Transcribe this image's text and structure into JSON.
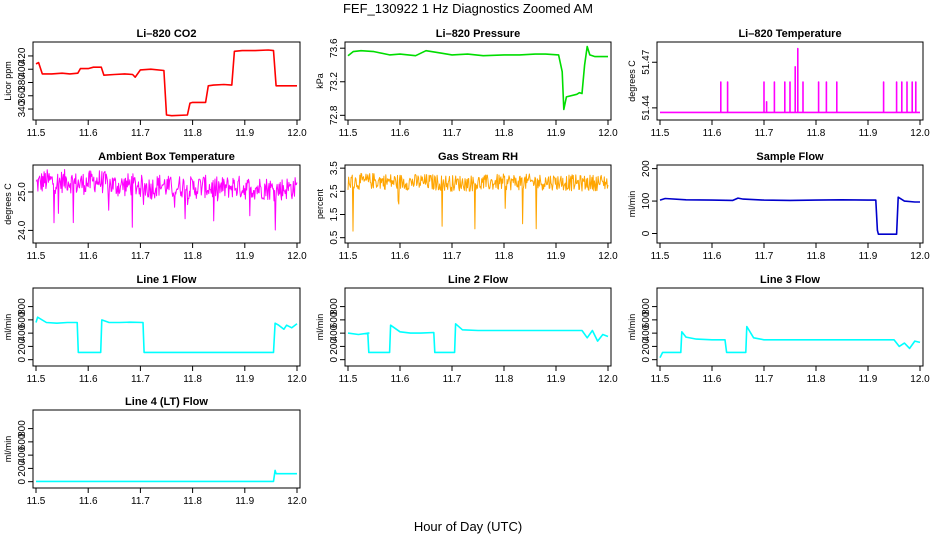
{
  "title": "FEF_130922  1 Hz Diagnostics Zoomed AM",
  "xlabel": "Hour of Day (UTC)",
  "chart_data": [
    {
      "type": "line",
      "title": "Li–820 CO2",
      "ylabel": "Licor ppm",
      "color": "#ff0000",
      "xlim": [
        11.5,
        12.0
      ],
      "ylim": [
        328,
        438
      ],
      "x_ticks": [
        "11.5",
        "11.6",
        "11.7",
        "11.8",
        "11.9",
        "12.0"
      ],
      "y_ticks": [
        {
          "value": 340,
          "label": "340"
        },
        {
          "value": 360,
          "label": "360"
        },
        {
          "value": 380,
          "label": "380"
        },
        {
          "value": 400,
          "label": "400"
        },
        {
          "value": 420,
          "label": "420"
        }
      ],
      "series": [
        {
          "x": [
            11.5,
            11.505,
            11.512,
            11.53,
            11.55,
            11.565,
            11.58,
            11.585,
            11.6,
            11.61,
            11.625,
            11.63,
            11.65,
            11.67,
            11.685,
            11.69,
            11.7,
            11.72,
            11.745,
            11.75,
            11.76,
            11.79,
            11.795,
            11.8,
            11.815,
            11.825,
            11.83,
            11.84,
            11.86,
            11.875,
            11.88,
            11.895,
            11.92,
            11.945,
            11.955,
            11.96,
            11.97,
            11.99,
            12.0
          ],
          "y": [
            408,
            410,
            393,
            393,
            394,
            393,
            394,
            401,
            401,
            403,
            403,
            391,
            392,
            393,
            392,
            388,
            399,
            400,
            398,
            331,
            330,
            331,
            349,
            350,
            350,
            350,
            375,
            376,
            377,
            376,
            427,
            428,
            428,
            429,
            428,
            375,
            375,
            375,
            375
          ]
        }
      ]
    },
    {
      "type": "line",
      "title": "Li–820 Pressure",
      "ylabel": "kPa",
      "color": "#00dd00",
      "xlim": [
        11.5,
        12.0
      ],
      "ylim": [
        72.78,
        73.65
      ],
      "x_ticks": [
        "11.5",
        "11.6",
        "11.7",
        "11.8",
        "11.9",
        "12.0"
      ],
      "y_ticks": [
        {
          "value": 72.8,
          "label": "72.8"
        },
        {
          "value": 73.2,
          "label": "73.2"
        },
        {
          "value": 73.6,
          "label": "73.6"
        }
      ],
      "series": [
        {
          "x": [
            11.5,
            11.51,
            11.525,
            11.55,
            11.58,
            11.6,
            11.63,
            11.65,
            11.68,
            11.7,
            11.73,
            11.76,
            11.8,
            11.83,
            11.86,
            11.88,
            11.905,
            11.912,
            11.915,
            11.92,
            11.94,
            11.945,
            11.95,
            11.955,
            11.96,
            11.965,
            11.975,
            11.99,
            12.0
          ],
          "y": [
            73.51,
            73.56,
            73.57,
            73.56,
            73.52,
            73.53,
            73.51,
            73.57,
            73.54,
            73.52,
            73.53,
            73.51,
            73.52,
            73.52,
            73.53,
            73.53,
            73.52,
            73.32,
            72.87,
            73.02,
            73.05,
            73.07,
            73.06,
            73.4,
            73.62,
            73.52,
            73.5,
            73.5,
            73.5
          ]
        }
      ]
    },
    {
      "type": "line",
      "title": "Li–820 Temperature",
      "ylabel": "degrees C",
      "color": "#ff00ff",
      "xlim": [
        11.5,
        12.0
      ],
      "ylim": [
        51.434,
        51.482
      ],
      "x_ticks": [
        "11.5",
        "11.6",
        "11.7",
        "11.8",
        "11.9",
        "12.0"
      ],
      "y_ticks": [
        {
          "value": 51.44,
          "label": "51.44"
        },
        {
          "value": 51.47,
          "label": "51.47"
        }
      ],
      "series": [
        {
          "x": [
            11.5,
            11.617,
            11.617,
            11.617,
            11.63,
            11.63,
            11.63,
            11.7,
            11.7,
            11.7,
            11.705,
            11.705,
            11.705,
            11.72,
            11.72,
            11.72,
            11.74,
            11.74,
            11.74,
            11.75,
            11.75,
            11.75,
            11.76,
            11.76,
            11.76,
            11.765,
            11.765,
            11.765,
            11.775,
            11.775,
            11.775,
            11.805,
            11.805,
            11.805,
            11.82,
            11.82,
            11.82,
            11.84,
            11.84,
            11.84,
            11.93,
            11.93,
            11.93,
            11.955,
            11.955,
            11.955,
            11.965,
            11.965,
            11.965,
            11.975,
            11.975,
            11.975,
            11.985,
            11.985,
            11.985,
            11.992,
            11.992,
            11.992,
            12.0
          ],
          "y": [
            51.437,
            51.437,
            51.457,
            51.437,
            51.437,
            51.457,
            51.437,
            51.437,
            51.457,
            51.437,
            51.437,
            51.444,
            51.437,
            51.437,
            51.457,
            51.437,
            51.437,
            51.457,
            51.437,
            51.437,
            51.457,
            51.437,
            51.437,
            51.467,
            51.437,
            51.437,
            51.479,
            51.437,
            51.437,
            51.457,
            51.437,
            51.437,
            51.457,
            51.437,
            51.437,
            51.457,
            51.437,
            51.437,
            51.457,
            51.437,
            51.437,
            51.457,
            51.437,
            51.437,
            51.457,
            51.437,
            51.437,
            51.457,
            51.437,
            51.437,
            51.457,
            51.437,
            51.437,
            51.457,
            51.437,
            51.437,
            51.457,
            51.437,
            51.437
          ]
        }
      ]
    },
    {
      "type": "line",
      "title": "Ambient Box Temperature",
      "ylabel": "degrees C",
      "color": "#ff00ff",
      "xlim": [
        11.5,
        12.0
      ],
      "ylim": [
        23.75,
        25.65
      ],
      "x_ticks": [
        "11.5",
        "11.6",
        "11.7",
        "11.8",
        "11.9",
        "12.0"
      ],
      "y_ticks": [
        {
          "value": 24.0,
          "label": "24.0"
        },
        {
          "value": 25.0,
          "label": "25.0"
        }
      ],
      "series": [
        {
          "x": [
            11.5,
            11.52,
            11.54,
            11.56,
            11.58,
            11.6,
            11.62,
            11.64,
            11.66,
            11.68,
            11.7,
            11.72,
            11.74,
            11.76,
            11.78,
            11.8,
            11.82,
            11.84,
            11.86,
            11.88,
            11.9,
            11.92,
            11.94,
            11.96,
            11.98,
            12.0
          ],
          "y": [
            25.2,
            25.3,
            25.25,
            25.3,
            25.2,
            25.25,
            25.3,
            25.2,
            25.15,
            25.2,
            25.15,
            25.1,
            25.2,
            25.1,
            25.15,
            25.1,
            25.15,
            25.1,
            25.1,
            25.15,
            25.1,
            25.1,
            25.1,
            25.05,
            25.1,
            25.1
          ]
        }
      ]
    },
    {
      "type": "line",
      "title": "Gas Stream RH",
      "ylabel": "percent",
      "color": "#ffa500",
      "xlim": [
        11.5,
        12.0
      ],
      "ylim": [
        0.4,
        3.55
      ],
      "x_ticks": [
        "11.5",
        "11.6",
        "11.7",
        "11.8",
        "11.9",
        "12.0"
      ],
      "y_ticks": [
        {
          "value": 0.5,
          "label": "0.5"
        },
        {
          "value": 1.5,
          "label": "1.5"
        },
        {
          "value": 2.5,
          "label": "2.5"
        },
        {
          "value": 3.5,
          "label": "3.5"
        }
      ],
      "series": [
        {
          "x": [
            11.5,
            11.55,
            11.6,
            11.65,
            11.7,
            11.75,
            11.8,
            11.85,
            11.9,
            11.95,
            12.0
          ],
          "y": [
            2.9,
            2.95,
            2.9,
            2.9,
            2.85,
            2.85,
            2.9,
            2.9,
            2.9,
            2.85,
            2.9
          ]
        }
      ]
    },
    {
      "type": "line",
      "title": "Sample Flow",
      "ylabel": "ml/min",
      "color": "#0000cc",
      "xlim": [
        11.5,
        12.0
      ],
      "ylim": [
        -20,
        205
      ],
      "x_ticks": [
        "11.5",
        "11.6",
        "11.7",
        "11.8",
        "11.9",
        "12.0"
      ],
      "y_ticks": [
        {
          "value": 0,
          "label": "0"
        },
        {
          "value": 100,
          "label": "100"
        },
        {
          "value": 200,
          "label": "200"
        }
      ],
      "series": [
        {
          "x": [
            11.5,
            11.51,
            11.55,
            11.6,
            11.64,
            11.65,
            11.66,
            11.7,
            11.75,
            11.8,
            11.85,
            11.9,
            11.915,
            11.918,
            11.92,
            11.95,
            11.955,
            11.958,
            11.97,
            11.99,
            12.0
          ],
          "y": [
            103,
            108,
            104,
            103,
            102,
            109,
            106,
            103,
            102,
            103,
            104,
            103,
            103,
            10,
            -2,
            -2,
            -2,
            112,
            100,
            97,
            97
          ]
        }
      ]
    },
    {
      "type": "line",
      "title": "Line 1 Flow",
      "ylabel": "ml/min",
      "color": "#00ffff",
      "xlim": [
        11.5,
        12.0
      ],
      "ylim": [
        -50,
        1050
      ],
      "x_ticks": [
        "11.5",
        "11.6",
        "11.7",
        "11.8",
        "11.9",
        "12.0"
      ],
      "y_ticks": [
        {
          "value": 0,
          "label": "0"
        },
        {
          "value": 200,
          "label": "200"
        },
        {
          "value": 400,
          "label": "400"
        },
        {
          "value": 600,
          "label": "600"
        },
        {
          "value": 800,
          "label": "800"
        }
      ],
      "series": [
        {
          "x": [
            11.5,
            11.503,
            11.52,
            11.54,
            11.56,
            11.579,
            11.581,
            11.62,
            11.624,
            11.626,
            11.64,
            11.66,
            11.68,
            11.705,
            11.707,
            11.75,
            11.8,
            11.85,
            11.9,
            11.955,
            11.958,
            11.965,
            11.975,
            11.98,
            11.99,
            12.0
          ],
          "y": [
            560,
            640,
            560,
            550,
            560,
            560,
            110,
            110,
            110,
            600,
            560,
            560,
            565,
            560,
            110,
            110,
            110,
            110,
            110,
            110,
            550,
            520,
            460,
            520,
            480,
            540
          ]
        }
      ]
    },
    {
      "type": "line",
      "title": "Line 2 Flow",
      "ylabel": "ml/min",
      "color": "#00ffff",
      "xlim": [
        11.5,
        12.0
      ],
      "ylim": [
        -50,
        1050
      ],
      "x_ticks": [
        "11.5",
        "11.6",
        "11.7",
        "11.8",
        "11.9",
        "12.0"
      ],
      "y_ticks": [
        {
          "value": 0,
          "label": "0"
        },
        {
          "value": 200,
          "label": "200"
        },
        {
          "value": 400,
          "label": "400"
        },
        {
          "value": 600,
          "label": "600"
        },
        {
          "value": 800,
          "label": "800"
        }
      ],
      "series": [
        {
          "x": [
            11.5,
            11.52,
            11.54,
            11.538,
            11.54,
            11.58,
            11.582,
            11.6,
            11.62,
            11.64,
            11.665,
            11.667,
            11.705,
            11.707,
            11.72,
            11.75,
            11.8,
            11.85,
            11.9,
            11.95,
            11.96,
            11.97,
            11.98,
            11.99,
            12.0
          ],
          "y": [
            400,
            380,
            400,
            400,
            110,
            110,
            520,
            420,
            400,
            400,
            410,
            110,
            110,
            540,
            450,
            440,
            440,
            440,
            440,
            440,
            330,
            440,
            280,
            380,
            350
          ]
        }
      ]
    },
    {
      "type": "line",
      "title": "Line 3 Flow",
      "ylabel": "ml/min",
      "color": "#00ffff",
      "xlim": [
        11.5,
        12.0
      ],
      "ylim": [
        -50,
        1050
      ],
      "x_ticks": [
        "11.5",
        "11.6",
        "11.7",
        "11.8",
        "11.9",
        "12.0"
      ],
      "y_ticks": [
        {
          "value": 0,
          "label": "0"
        },
        {
          "value": 200,
          "label": "200"
        },
        {
          "value": 400,
          "label": "400"
        },
        {
          "value": 600,
          "label": "600"
        },
        {
          "value": 800,
          "label": "800"
        }
      ],
      "series": [
        {
          "x": [
            11.5,
            11.505,
            11.54,
            11.542,
            11.55,
            11.57,
            11.6,
            11.625,
            11.628,
            11.665,
            11.667,
            11.68,
            11.7,
            11.75,
            11.8,
            11.85,
            11.9,
            11.95,
            11.96,
            11.97,
            11.98,
            11.99,
            12.0
          ],
          "y": [
            30,
            110,
            110,
            420,
            340,
            310,
            300,
            300,
            110,
            110,
            500,
            330,
            300,
            300,
            300,
            300,
            300,
            300,
            200,
            250,
            170,
            280,
            260
          ]
        }
      ]
    },
    {
      "type": "line",
      "title": "Line 4 (LT) Flow",
      "ylabel": "ml/min",
      "color": "#00ffff",
      "xlim": [
        11.5,
        12.0
      ],
      "ylim": [
        -50,
        1050
      ],
      "x_ticks": [
        "11.5",
        "11.6",
        "11.7",
        "11.8",
        "11.9",
        "12.0"
      ],
      "y_ticks": [
        {
          "value": 0,
          "label": "0"
        },
        {
          "value": 200,
          "label": "200"
        },
        {
          "value": 400,
          "label": "400"
        },
        {
          "value": 600,
          "label": "600"
        },
        {
          "value": 800,
          "label": "800"
        }
      ],
      "series": [
        {
          "x": [
            11.5,
            11.6,
            11.7,
            11.8,
            11.9,
            11.955,
            11.958,
            11.96,
            11.97,
            12.0
          ],
          "y": [
            5,
            5,
            5,
            5,
            5,
            5,
            170,
            120,
            120,
            120
          ]
        }
      ]
    }
  ]
}
